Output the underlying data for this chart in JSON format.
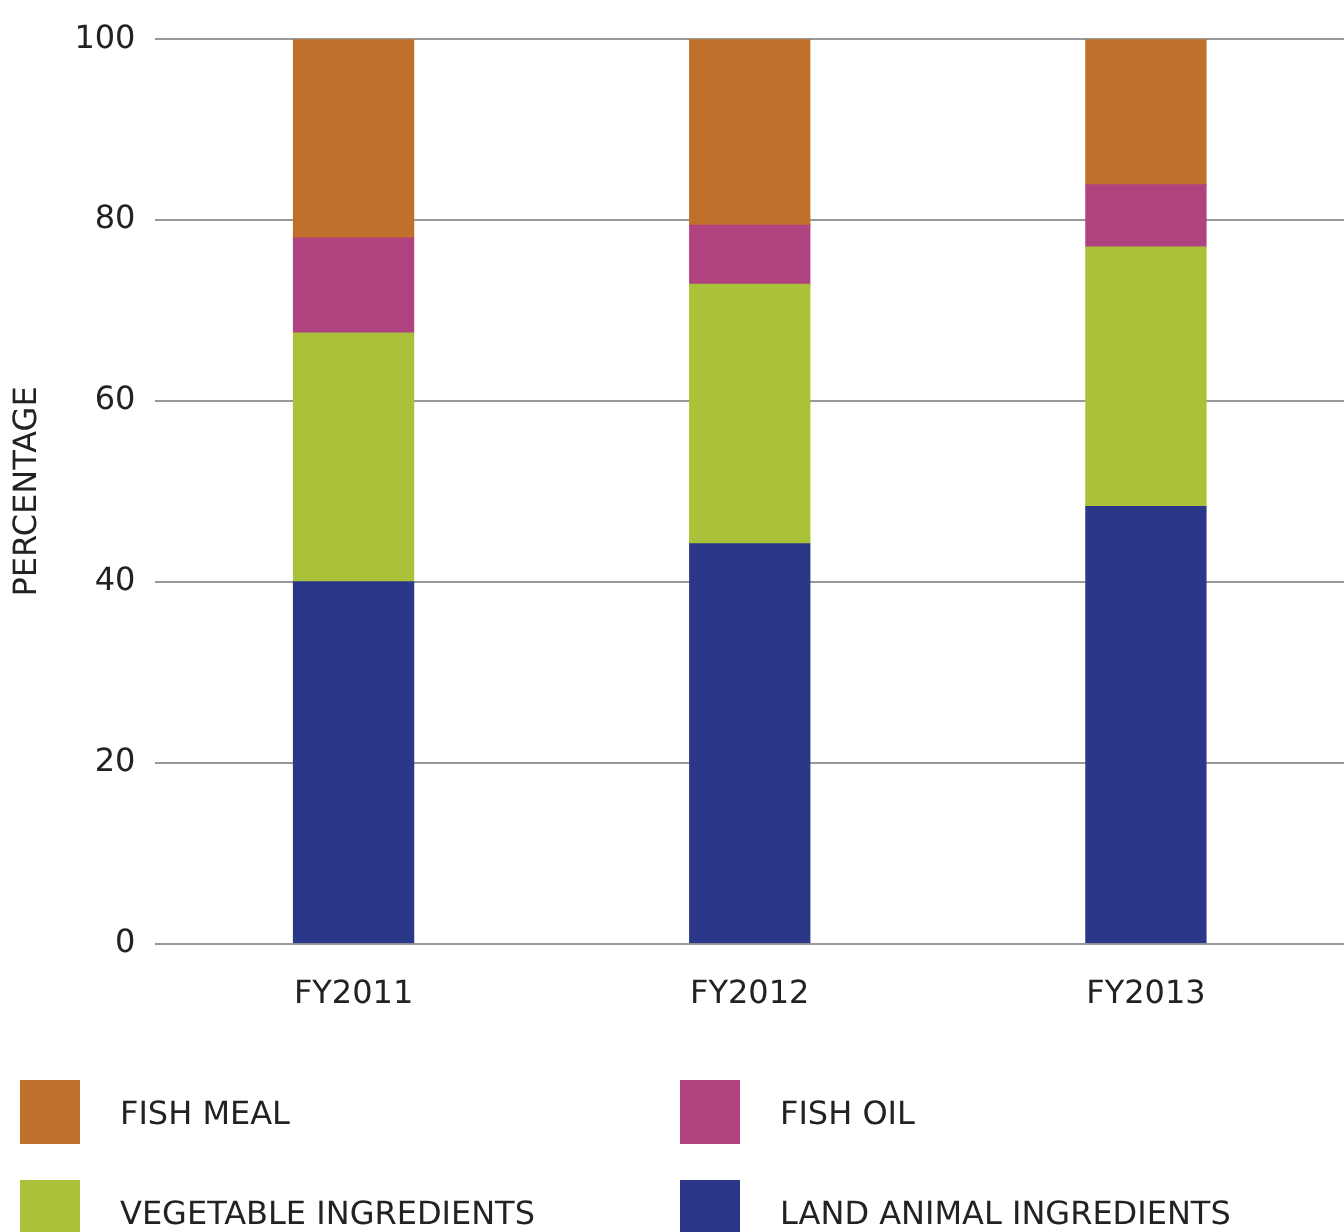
{
  "chart_data": {
    "type": "bar",
    "stacked": true,
    "ylabel": "PERCENTAGE",
    "categories": [
      "FY2011",
      "FY2012",
      "FY2013"
    ],
    "series": [
      {
        "name": "LAND ANIMAL INGREDIENTS",
        "color": "#2b388a",
        "values": [
          40,
          44.2,
          48.3
        ]
      },
      {
        "name": "VEGETABLE INGREDIENTS",
        "color": "#a9c23a",
        "values": [
          27.5,
          28.7,
          28.7
        ]
      },
      {
        "name": "FISH OIL",
        "color": "#b0437f",
        "values": [
          10.5,
          6.5,
          6.9
        ]
      },
      {
        "name": "FISH MEAL",
        "color": "#c0702a",
        "values": [
          22,
          20.6,
          16.1
        ]
      }
    ],
    "ylim": [
      0,
      100
    ],
    "yticks": [
      0,
      20,
      40,
      60,
      80,
      100
    ],
    "grid": "y",
    "legend": "bottom"
  }
}
